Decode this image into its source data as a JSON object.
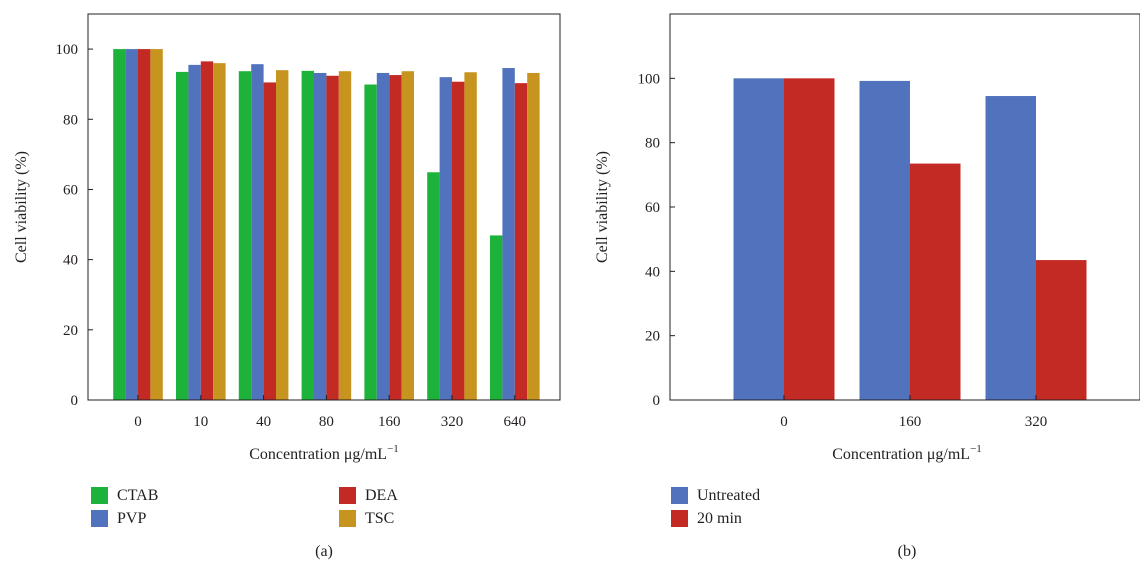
{
  "chart_data": [
    {
      "type": "bar",
      "panel_label": "(a)",
      "categories": [
        "0",
        "10",
        "40",
        "80",
        "160",
        "320",
        "640"
      ],
      "series": [
        {
          "name": "CTAB",
          "color": "#1db33a",
          "values": [
            100,
            93.5,
            93.7,
            93.8,
            89.9,
            64.9,
            46.9
          ]
        },
        {
          "name": "PVP",
          "color": "#5172bd",
          "values": [
            100,
            95.5,
            95.7,
            93.2,
            93.2,
            92.0,
            94.6
          ]
        },
        {
          "name": "DEA",
          "color": "#c42a24",
          "values": [
            100,
            96.5,
            90.5,
            92.4,
            92.6,
            90.7,
            90.3
          ]
        },
        {
          "name": "TSC",
          "color": "#c89420",
          "values": [
            100,
            96.0,
            94.0,
            93.7,
            93.7,
            93.4,
            93.2
          ]
        }
      ],
      "xlabel": "Concentration μg/mL",
      "xlabel_superscript": "−1",
      "ylabel": "Cell viability (%)",
      "ylim": [
        0,
        110
      ],
      "yticks": [
        "0",
        "20",
        "40",
        "60",
        "80",
        "100"
      ],
      "grid": false,
      "legend_position": "bottom"
    },
    {
      "type": "bar",
      "panel_label": "(b)",
      "categories": [
        "0",
        "160",
        "320"
      ],
      "series": [
        {
          "name": "Untreated",
          "color": "#5172bd",
          "values": [
            100,
            99.2,
            94.5
          ]
        },
        {
          "name": "20 min",
          "color": "#c42a24",
          "values": [
            100,
            73.5,
            43.5
          ]
        }
      ],
      "xlabel": "Concentration μg/mL",
      "xlabel_superscript": "−1",
      "ylabel": "Cell viability (%)",
      "ylim": [
        0,
        120
      ],
      "yticks": [
        "0",
        "20",
        "40",
        "60",
        "80",
        "100"
      ],
      "grid": false,
      "legend_position": "bottom"
    }
  ]
}
